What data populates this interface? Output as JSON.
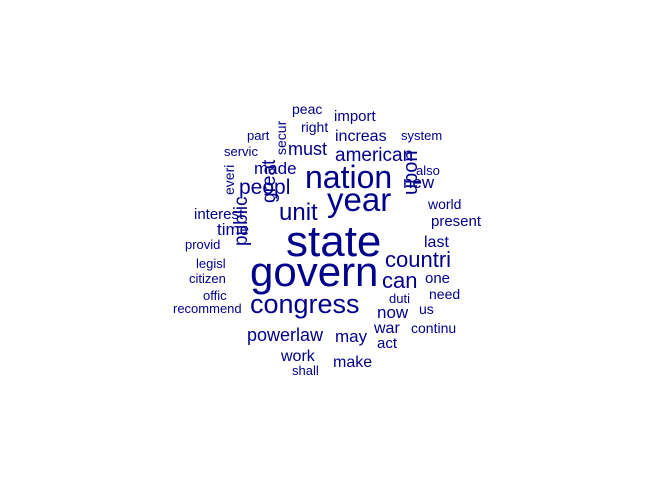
{
  "word_color": "#00008b",
  "words": [
    {
      "text": "state",
      "weight": 44
    },
    {
      "text": "govern",
      "weight": 42
    },
    {
      "text": "year",
      "weight": 33
    },
    {
      "text": "nation",
      "weight": 32
    },
    {
      "text": "congress",
      "weight": 27
    },
    {
      "text": "unit",
      "weight": 24
    },
    {
      "text": "countri",
      "weight": 22
    },
    {
      "text": "can",
      "weight": 22
    },
    {
      "text": "peopl",
      "weight": 21
    },
    {
      "text": "upon",
      "weight": 20
    },
    {
      "text": "american",
      "weight": 19
    },
    {
      "text": "great",
      "weight": 19
    },
    {
      "text": "public",
      "weight": 19
    },
    {
      "text": "powerlaw",
      "weight": 18
    },
    {
      "text": "must",
      "weight": 18
    },
    {
      "text": "made",
      "weight": 17
    },
    {
      "text": "new",
      "weight": 17
    },
    {
      "text": "now",
      "weight": 17
    },
    {
      "text": "may",
      "weight": 17
    },
    {
      "text": "time",
      "weight": 17
    },
    {
      "text": "increas",
      "weight": 16
    },
    {
      "text": "war",
      "weight": 16
    },
    {
      "text": "work",
      "weight": 16
    },
    {
      "text": "make",
      "weight": 16
    },
    {
      "text": "last",
      "weight": 16
    },
    {
      "text": "present",
      "weight": 15
    },
    {
      "text": "act",
      "weight": 15
    },
    {
      "text": "one",
      "weight": 15
    },
    {
      "text": "interest",
      "weight": 15
    },
    {
      "text": "import",
      "weight": 15
    },
    {
      "text": "world",
      "weight": 14
    },
    {
      "text": "peac",
      "weight": 14
    },
    {
      "text": "right",
      "weight": 14
    },
    {
      "text": "need",
      "weight": 14
    },
    {
      "text": "secur",
      "weight": 14
    },
    {
      "text": "everi",
      "weight": 14
    },
    {
      "text": "us",
      "weight": 14
    },
    {
      "text": "continu",
      "weight": 14
    },
    {
      "text": "servic",
      "weight": 13
    },
    {
      "text": "provid",
      "weight": 13
    },
    {
      "text": "also",
      "weight": 13
    },
    {
      "text": "system",
      "weight": 13
    },
    {
      "text": "part",
      "weight": 13
    },
    {
      "text": "citizen",
      "weight": 13
    },
    {
      "text": "legisl",
      "weight": 13
    },
    {
      "text": "recommend",
      "weight": 13
    },
    {
      "text": "offic",
      "weight": 13
    },
    {
      "text": "duti",
      "weight": 13
    },
    {
      "text": "shall",
      "weight": 13
    }
  ]
}
